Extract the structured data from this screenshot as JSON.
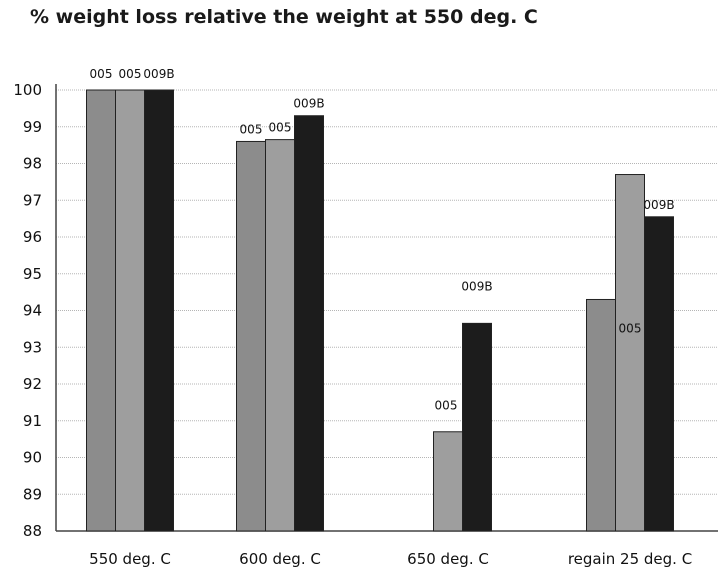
{
  "chart_data": {
    "type": "bar",
    "title": "% weight loss relative the weight at 550 deg. C",
    "xlabel": "",
    "ylabel": "",
    "ylim": [
      88,
      100
    ],
    "yticks": [
      88,
      89,
      90,
      91,
      92,
      93,
      94,
      95,
      96,
      97,
      98,
      99,
      100
    ],
    "grid": true,
    "legend": "none",
    "categories": [
      "550 deg. C",
      "600 deg. C",
      "650 deg. C",
      "regain 25 deg. C"
    ],
    "series": [
      {
        "color": "#8c8c8c",
        "values": [
          100,
          98.6,
          null,
          94.3
        ],
        "labels": [
          "005",
          "005",
          "",
          ""
        ]
      },
      {
        "color": "#9e9e9e",
        "values": [
          100,
          98.65,
          90.7,
          97.7
        ],
        "labels": [
          "005",
          "005",
          "005",
          "005"
        ]
      },
      {
        "color": "#1c1c1c",
        "values": [
          100,
          99.3,
          93.65,
          96.55
        ],
        "labels": [
          "009B",
          "009B",
          "009B",
          "009B"
        ]
      }
    ]
  }
}
